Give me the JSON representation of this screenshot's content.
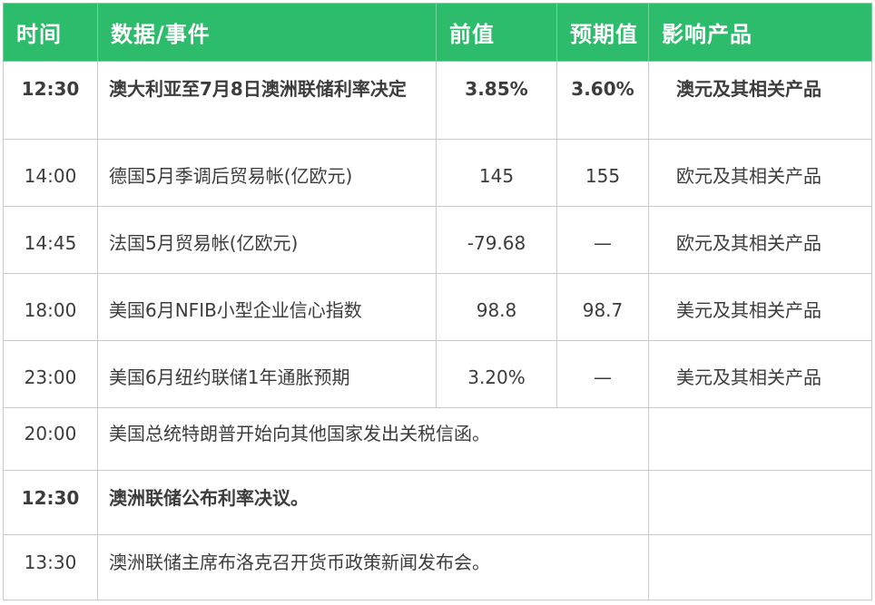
{
  "header": {
    "time": "时间",
    "event": "数据/事件",
    "prev": "前值",
    "forecast": "预期值",
    "impact": "影响产品"
  },
  "rows": [
    {
      "time": "12:30",
      "event": "澳大利亚至7月8日澳洲联储利率决定",
      "prev": "3.85%",
      "forecast": "3.60%",
      "impact": "澳元及其相关产品"
    },
    {
      "time": "14:00",
      "event": "德国5月季调后贸易帐(亿欧元)",
      "prev": "145",
      "forecast": "155",
      "impact": "欧元及其相关产品"
    },
    {
      "time": "14:45",
      "event": "法国5月贸易帐(亿欧元)",
      "prev": "-79.68",
      "forecast": "—",
      "impact": "欧元及其相关产品"
    },
    {
      "time": "18:00",
      "event": "美国6月NFIB小型企业信心指数",
      "prev": "98.8",
      "forecast": "98.7",
      "impact": "美元及其相关产品"
    },
    {
      "time": "23:00",
      "event": "美国6月纽约联储1年通胀预期",
      "prev": "3.20%",
      "forecast": "—",
      "impact": "美元及其相关产品"
    }
  ],
  "events": [
    {
      "time": "20:00",
      "event": "美国总统特朗普开始向其他国家发出关税信函。"
    },
    {
      "time": "12:30",
      "event": "澳洲联储公布利率决议。"
    },
    {
      "time": "13:30",
      "event": "澳洲联储主席布洛克召开货币政策新闻发布会。"
    }
  ]
}
